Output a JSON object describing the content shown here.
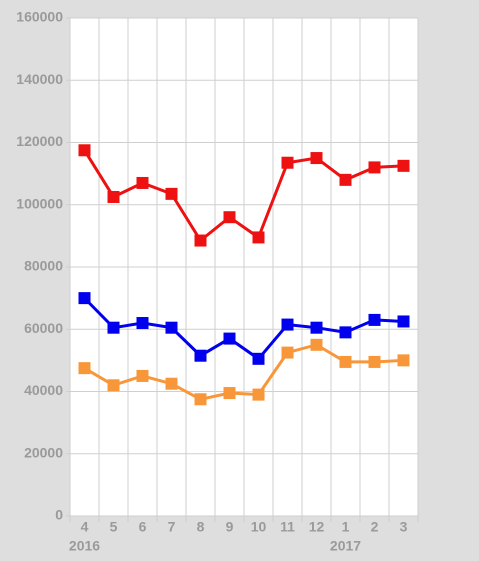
{
  "chart_data": {
    "type": "line",
    "categories": [
      "4",
      "5",
      "6",
      "7",
      "8",
      "9",
      "10",
      "11",
      "12",
      "1",
      "2",
      "3"
    ],
    "year_labels": [
      "2016",
      null,
      null,
      null,
      null,
      null,
      null,
      null,
      null,
      "2017",
      null,
      null
    ],
    "series": [
      {
        "color": "#ee1111",
        "values": [
          117500,
          102500,
          107000,
          103500,
          88500,
          96000,
          89500,
          113500,
          115000,
          108000,
          112000,
          112500
        ]
      },
      {
        "color": "#0000ee",
        "values": [
          70000,
          60500,
          62000,
          60500,
          51500,
          57000,
          50500,
          61500,
          60500,
          59000,
          63000,
          62500
        ]
      },
      {
        "color": "#f7973a",
        "values": [
          47500,
          42000,
          45000,
          42500,
          37500,
          39500,
          39000,
          52500,
          55000,
          49500,
          49500,
          50000
        ]
      }
    ],
    "ylim": [
      0,
      160000
    ],
    "yticks": [
      0,
      20000,
      40000,
      60000,
      80000,
      100000,
      120000,
      140000,
      160000
    ],
    "grid": true
  }
}
